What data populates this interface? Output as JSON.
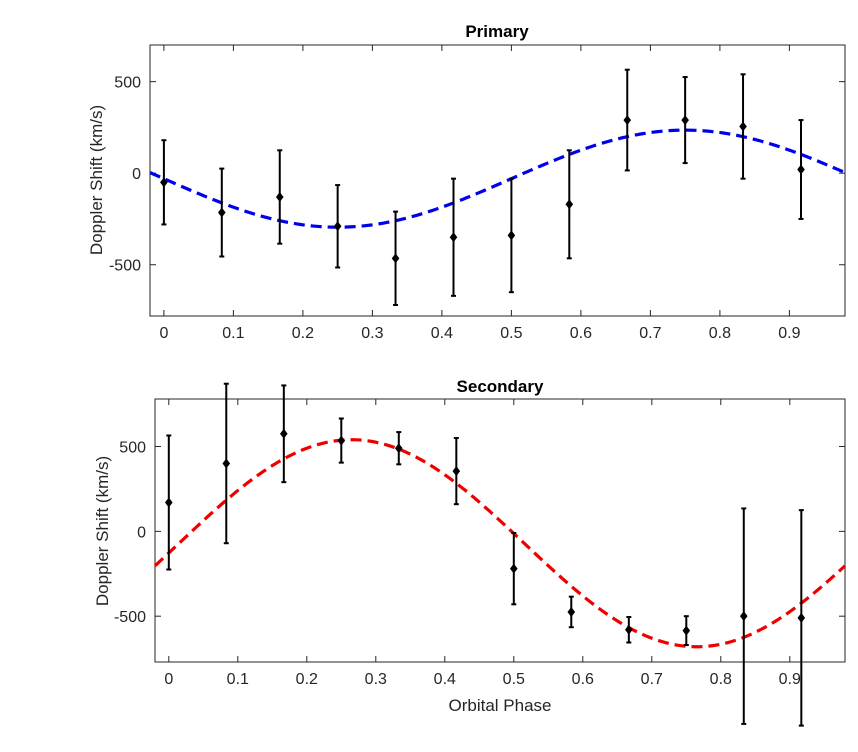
{
  "chart_data": [
    {
      "type": "scatter",
      "title": "Primary",
      "xlabel": "",
      "ylabel": "Doppler Shift (km/s)",
      "xlim": [
        -0.02,
        0.98
      ],
      "ylim": [
        -780,
        700
      ],
      "xticks": [
        0,
        0.1,
        0.2,
        0.3,
        0.4,
        0.5,
        0.6,
        0.7,
        0.8,
        0.9
      ],
      "xtick_labels": [
        "0",
        "0.1",
        "0.2",
        "0.3",
        "0.4",
        "0.5",
        "0.6",
        "0.7",
        "0.8",
        "0.9"
      ],
      "yticks": [
        -500,
        0,
        500
      ],
      "ytick_labels": [
        "-500",
        "0",
        "500"
      ],
      "points": {
        "x": [
          0,
          0.0833,
          0.1667,
          0.25,
          0.3333,
          0.4167,
          0.5,
          0.5833,
          0.6667,
          0.75,
          0.8333,
          0.9167
        ],
        "y": [
          -50,
          -215,
          -130,
          -290,
          -465,
          -350,
          -340,
          -170,
          290,
          290,
          255,
          20
        ],
        "yerr": [
          230,
          240,
          255,
          225,
          255,
          320,
          310,
          295,
          275,
          235,
          285,
          270
        ],
        "color": "#000000"
      },
      "fit": {
        "type": "sinusoid",
        "gamma": -30,
        "K": 265,
        "phase_of_min": 0.25,
        "color": "#0000ee"
      }
    },
    {
      "type": "scatter",
      "title": "Secondary",
      "xlabel": "Orbital Phase",
      "ylabel": "Doppler Shift (km/s)",
      "xlim": [
        -0.02,
        0.98
      ],
      "ylim": [
        -770,
        780
      ],
      "xticks": [
        0,
        0.1,
        0.2,
        0.3,
        0.4,
        0.5,
        0.6,
        0.7,
        0.8,
        0.9
      ],
      "xtick_labels": [
        "0",
        "0.1",
        "0.2",
        "0.3",
        "0.4",
        "0.5",
        "0.6",
        "0.7",
        "0.8",
        "0.9"
      ],
      "yticks": [
        -500,
        0,
        500
      ],
      "ytick_labels": [
        "-500",
        "0",
        "500"
      ],
      "points": {
        "x": [
          0,
          0.0833,
          0.1667,
          0.25,
          0.3333,
          0.4167,
          0.5,
          0.5833,
          0.6667,
          0.75,
          0.8333,
          0.9167
        ],
        "y": [
          170,
          400,
          575,
          535,
          490,
          355,
          -220,
          -475,
          -580,
          -585,
          -500,
          -510
        ],
        "yerr": [
          395,
          470,
          285,
          130,
          95,
          195,
          210,
          90,
          75,
          85,
          635,
          635
        ],
        "color": "#000000"
      },
      "fit": {
        "type": "sinusoid",
        "gamma": -70,
        "K": 610,
        "phase_of_min": 0.765,
        "color": "#ee0000"
      }
    }
  ]
}
